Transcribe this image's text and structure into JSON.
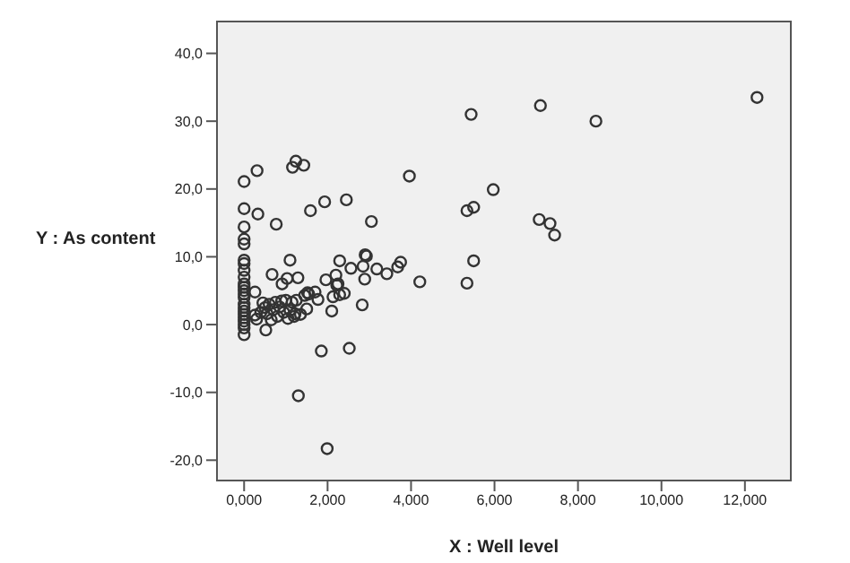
{
  "chart_data": {
    "type": "scatter",
    "xlabel": "X : Well level",
    "ylabel": "Y : As content",
    "marker": "circle",
    "grid": false,
    "legend": false,
    "xlim": [
      -0.65,
      13.1
    ],
    "ylim": [
      -23,
      44.7
    ],
    "xticks": [
      {
        "value": 0,
        "label": "0,000"
      },
      {
        "value": 2,
        "label": "2,000"
      },
      {
        "value": 4,
        "label": "4,000"
      },
      {
        "value": 6,
        "label": "6,000"
      },
      {
        "value": 8,
        "label": "8,000"
      },
      {
        "value": 10,
        "label": "10,000"
      },
      {
        "value": 12,
        "label": "12,000"
      }
    ],
    "yticks": [
      {
        "value": -20,
        "label": "-20,0"
      },
      {
        "value": -10,
        "label": "-10,0"
      },
      {
        "value": 0,
        "label": "0,0"
      },
      {
        "value": 10,
        "label": "10,0"
      },
      {
        "value": 20,
        "label": "20,0"
      },
      {
        "value": 30,
        "label": "30,0"
      },
      {
        "value": 40,
        "label": "40,0"
      }
    ],
    "series": [
      {
        "color": "#333333",
        "x": [
          0,
          0.31,
          0,
          0.33,
          0,
          0,
          0,
          0.77,
          1.1,
          1.16,
          1.24,
          1.43,
          1.59,
          1.93,
          2.45,
          3.05,
          3.96,
          2.29,
          2.9,
          2.93,
          3.75,
          5.34,
          5.5,
          5.44,
          5.97,
          5.5,
          7.1,
          8.43,
          12.29,
          7.07,
          7.33,
          7.44,
          0,
          0,
          0,
          0,
          0,
          0,
          0,
          0,
          0,
          0,
          0,
          0,
          0,
          0,
          0,
          0,
          0,
          0,
          0.26,
          0.67,
          0.91,
          1.03,
          1.29,
          0.52,
          1.3,
          1.85,
          2.52,
          1.99,
          1.96,
          2.2,
          2.25,
          2.22,
          2.13,
          2.1,
          2.29,
          2.4,
          2.56,
          2.85,
          2.89,
          2.83,
          3.18,
          3.42,
          3.68,
          4.21,
          5.34,
          1.52,
          1.7,
          1.77,
          1.5,
          1.22,
          0.26,
          0.3,
          0.4,
          0.5,
          0.55,
          0.6,
          0.7,
          0.75,
          0.8,
          0.85,
          0.9,
          0.95,
          1.0,
          1.05,
          1.1,
          1.15,
          1.2,
          1.25,
          1.35,
          1.45,
          1.55,
          0.65,
          0.45
        ],
        "values": [
          21.1,
          22.7,
          17.1,
          16.3,
          14.4,
          12.6,
          11.9,
          14.8,
          9.5,
          23.2,
          24.1,
          23.5,
          16.8,
          18.1,
          18.4,
          15.2,
          21.9,
          9.4,
          10.3,
          10.1,
          9.2,
          16.8,
          17.3,
          31.0,
          19.9,
          9.4,
          32.3,
          30.0,
          33.5,
          15.5,
          14.9,
          13.2,
          9.5,
          9,
          8,
          7,
          6,
          5.5,
          5,
          4.5,
          4,
          3,
          2.5,
          2,
          1.5,
          1,
          0.5,
          0,
          -0.5,
          -1.5,
          4.8,
          7.4,
          6.0,
          6.8,
          6.9,
          -0.8,
          -10.5,
          -3.9,
          -3.5,
          -18.3,
          6.6,
          7.3,
          6.0,
          5.8,
          4.1,
          2.0,
          4.4,
          4.6,
          8.3,
          8.6,
          6.7,
          2.9,
          8.2,
          7.5,
          8.5,
          6.3,
          6.1,
          4.7,
          4.8,
          3.7,
          2.3,
          1.6,
          1.4,
          0.8,
          1.8,
          2.5,
          1.6,
          3.0,
          2.2,
          3.3,
          1.2,
          2.6,
          3.5,
          1.8,
          3.6,
          0.9,
          2.1,
          3.3,
          1.2,
          3.6,
          1.5,
          4.3,
          4.5,
          0.7,
          3.2
        ]
      }
    ]
  }
}
